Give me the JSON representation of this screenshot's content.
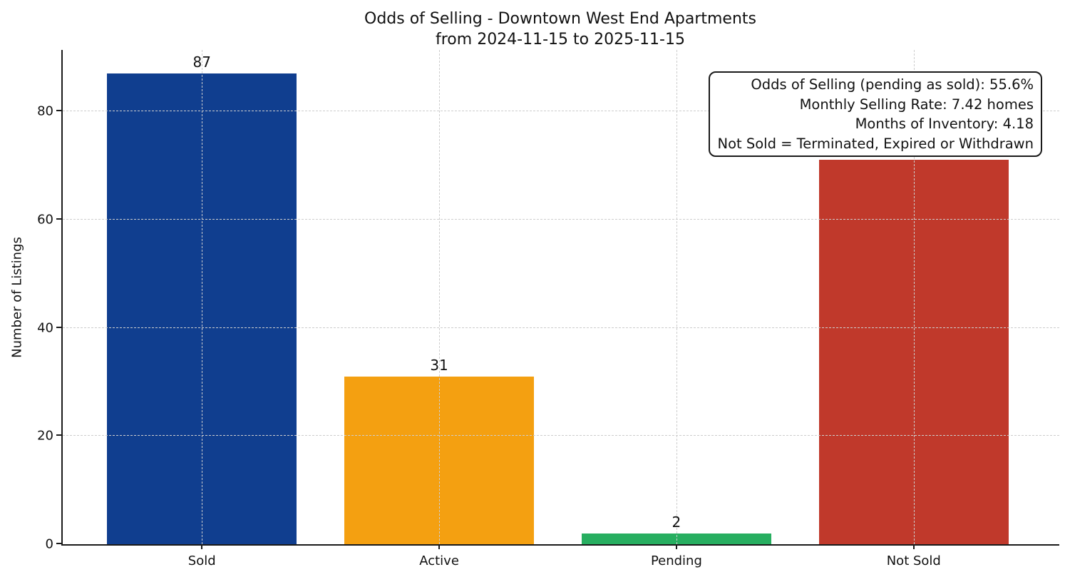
{
  "chart_data": {
    "type": "bar",
    "title": "Odds of Selling - Downtown West End Apartments",
    "subtitle": "from 2024-11-15 to 2025-11-15",
    "xlabel": "",
    "ylabel": "Number of Listings",
    "categories": [
      "Sold",
      "Active",
      "Pending",
      "Not Sold"
    ],
    "values": [
      87,
      31,
      2,
      71
    ],
    "bar_colors": [
      "#103e8f",
      "#f4a011",
      "#27ae60",
      "#c0392b"
    ],
    "value_label_colors": [
      "#111111",
      "#111111",
      "#111111",
      "#111111"
    ],
    "ylim": [
      0,
      91.35
    ],
    "yticks": [
      0,
      20,
      40,
      60,
      80
    ],
    "grid": "dashed light-gray, both x and y, drawn over bars",
    "legend": "none",
    "annotation": {
      "position": "top-right",
      "lines": [
        "Odds of Selling (pending as sold): 55.6%",
        "Monthly Selling Rate: 7.42 homes",
        "Months of Inventory: 4.18",
        "Not Sold = Terminated, Expired or Withdrawn"
      ]
    }
  }
}
